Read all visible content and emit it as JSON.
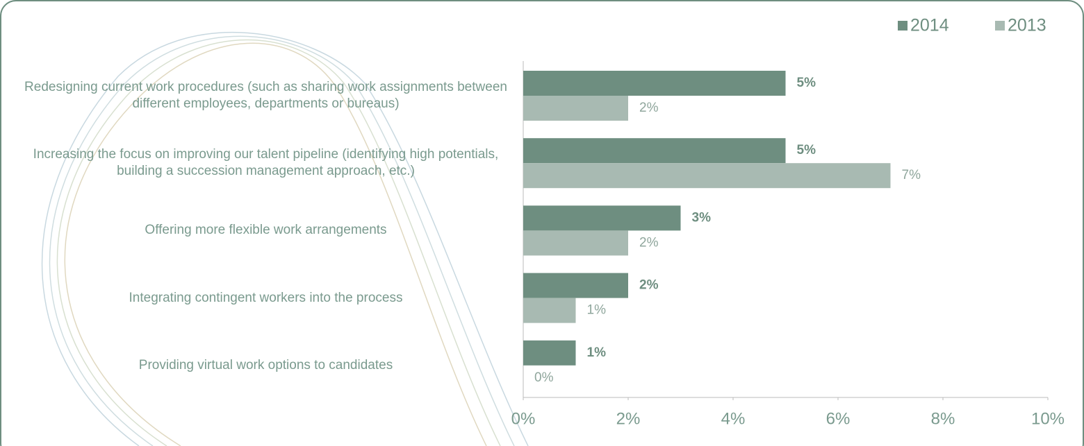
{
  "chart_data": {
    "type": "bar",
    "orientation": "horizontal",
    "categories": [
      "Redesigning current work procedures (such as sharing work assignments between different employees, departments or bureaus)",
      "Increasing the focus on improving our talent pipeline (identifying high potentials, building a succession management approach, etc.)",
      "Offering more flexible work arrangements",
      "Integrating contingent workers into the process",
      "Providing virtual work options to candidates"
    ],
    "series": [
      {
        "name": "2014",
        "color": "#6e8e80",
        "values": [
          5,
          5,
          3,
          2,
          1
        ],
        "value_labels": [
          "5%",
          "5%",
          "3%",
          "2%",
          "1%"
        ]
      },
      {
        "name": "2013",
        "color": "#a8bab2",
        "values": [
          2,
          7,
          2,
          1,
          0
        ],
        "value_labels": [
          "2%",
          "7%",
          "2%",
          "1%",
          "0%"
        ]
      }
    ],
    "xlim": [
      0,
      10
    ],
    "xticks": [
      {
        "value": 0,
        "label": "0%"
      },
      {
        "value": 2,
        "label": "2%"
      },
      {
        "value": 4,
        "label": "4%"
      },
      {
        "value": 6,
        "label": "6%"
      },
      {
        "value": 8,
        "label": "8%"
      },
      {
        "value": 10,
        "label": "10%"
      }
    ],
    "legend": "upper right"
  }
}
